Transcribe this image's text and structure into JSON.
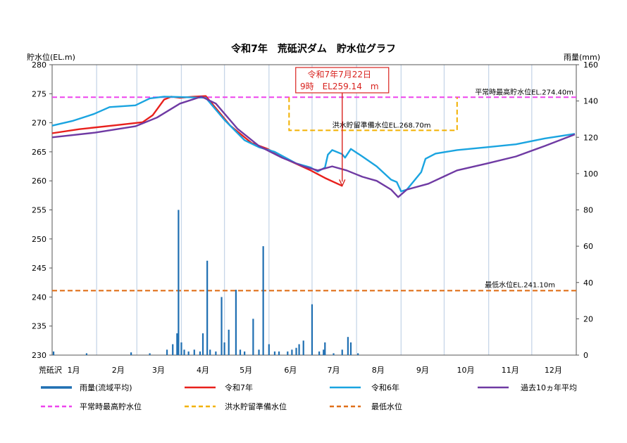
{
  "chart_data": {
    "type": "line",
    "title": "令和7年　荒砥沢ダム　貯水位グラフ",
    "left_axis": {
      "label": "貯水位(EL.m)",
      "range": [
        230,
        280
      ],
      "ticks": [
        "230",
        "235",
        "240",
        "245",
        "250",
        "255",
        "260",
        "265",
        "270",
        "275",
        "280"
      ]
    },
    "right_axis": {
      "label": "雨量(mm)",
      "range": [
        0,
        160
      ],
      "ticks": [
        "0",
        "20",
        "40",
        "60",
        "80",
        "100",
        "120",
        "140",
        "160"
      ]
    },
    "x_axis": {
      "label": "荒砥沢",
      "months": [
        "1月",
        "2月",
        "3月",
        "4月",
        "5月",
        "6月",
        "7月",
        "8月",
        "9月",
        "10月",
        "11月",
        "12月"
      ],
      "range_days": [
        0,
        365
      ]
    },
    "grid": "vertical monthly lines",
    "reference_lines": [
      {
        "name": "平常時最高貯水位",
        "label": "平常時最高貯水位EL.274.40m",
        "value": 274.4,
        "color": "#ee44ee"
      },
      {
        "name": "洪水貯留準備水位",
        "label": "洪水貯留準備水位EL.268.70m",
        "value": 268.7,
        "color": "#f2b100",
        "period": [
          "06-15",
          "10-10"
        ],
        "upper": 274.4
      },
      {
        "name": "最低水位",
        "label": "最低水位EL.241.10m",
        "value": 241.1,
        "color": "#e0701a"
      }
    ],
    "annotation": {
      "line1": "令和7年7月22日",
      "line2": "9時　EL259.14　m",
      "date": "07-22",
      "value": 259.14,
      "color": "#d8231f"
    },
    "series": [
      {
        "name": "令和7年",
        "color": "#e8201c",
        "points": [
          [
            "01-01",
            268.2
          ],
          [
            "01-20",
            268.9
          ],
          [
            "02-15",
            269.6
          ],
          [
            "03-05",
            270.1
          ],
          [
            "03-12",
            271.3
          ],
          [
            "03-20",
            274.0
          ],
          [
            "03-25",
            274.5
          ],
          [
            "03-31",
            274.3
          ],
          [
            "04-10",
            274.5
          ],
          [
            "04-18",
            274.6
          ],
          [
            "04-25",
            272.5
          ],
          [
            "05-05",
            269.5
          ],
          [
            "05-20",
            266.5
          ],
          [
            "05-31",
            265.5
          ],
          [
            "06-15",
            263.5
          ],
          [
            "06-30",
            261.8
          ],
          [
            "07-10",
            260.5
          ],
          [
            "07-22",
            259.14
          ]
        ]
      },
      {
        "name": "令和6年",
        "color": "#1aa4e0",
        "points": [
          [
            "01-01",
            269.5
          ],
          [
            "01-15",
            270.3
          ],
          [
            "01-30",
            271.5
          ],
          [
            "02-10",
            272.7
          ],
          [
            "02-28",
            273.0
          ],
          [
            "03-10",
            274.2
          ],
          [
            "03-20",
            274.5
          ],
          [
            "04-05",
            274.4
          ],
          [
            "04-18",
            274.3
          ],
          [
            "05-01",
            270.5
          ],
          [
            "05-15",
            267.0
          ],
          [
            "05-25",
            265.8
          ],
          [
            "06-05",
            265.0
          ],
          [
            "06-20",
            263.0
          ],
          [
            "06-30",
            262.3
          ],
          [
            "07-05",
            261.6
          ],
          [
            "07-10",
            262.3
          ],
          [
            "07-12",
            264.5
          ],
          [
            "07-15",
            265.3
          ],
          [
            "07-22",
            264.6
          ],
          [
            "07-24",
            264.0
          ],
          [
            "07-28",
            265.5
          ],
          [
            "08-05",
            264.2
          ],
          [
            "08-15",
            262.5
          ],
          [
            "08-25",
            260.2
          ],
          [
            "08-29",
            259.8
          ],
          [
            "09-01",
            258.2
          ],
          [
            "09-05",
            258.5
          ],
          [
            "09-10",
            260.0
          ],
          [
            "09-15",
            261.5
          ],
          [
            "09-18",
            263.8
          ],
          [
            "09-25",
            264.7
          ],
          [
            "10-10",
            265.3
          ],
          [
            "10-31",
            265.8
          ],
          [
            "11-20",
            266.3
          ],
          [
            "12-10",
            267.3
          ],
          [
            "12-31",
            268.1
          ]
        ]
      },
      {
        "name": "過去10ヵ年平均",
        "color": "#6f3aa3",
        "points": [
          [
            "01-01",
            267.5
          ],
          [
            "01-31",
            268.3
          ],
          [
            "02-28",
            269.4
          ],
          [
            "03-15",
            270.9
          ],
          [
            "03-31",
            273.3
          ],
          [
            "04-15",
            274.5
          ],
          [
            "04-25",
            273.3
          ],
          [
            "05-10",
            269.0
          ],
          [
            "05-25",
            266.0
          ],
          [
            "06-10",
            264.0
          ],
          [
            "06-25",
            262.5
          ],
          [
            "07-05",
            261.8
          ],
          [
            "07-15",
            262.5
          ],
          [
            "07-25",
            261.8
          ],
          [
            "08-05",
            260.7
          ],
          [
            "08-15",
            260.0
          ],
          [
            "08-25",
            258.5
          ],
          [
            "08-30",
            257.2
          ],
          [
            "09-05",
            258.5
          ],
          [
            "09-20",
            259.5
          ],
          [
            "10-10",
            261.8
          ],
          [
            "10-31",
            263.0
          ],
          [
            "11-20",
            264.2
          ],
          [
            "12-10",
            266.0
          ],
          [
            "12-31",
            268.0
          ]
        ]
      },
      {
        "name": "雨量(流域平均)",
        "color": "#1f6fb2",
        "axis": "right",
        "type": "bar",
        "bars": [
          [
            "01-02",
            2
          ],
          [
            "01-25",
            1
          ],
          [
            "02-25",
            1.5
          ],
          [
            "03-10",
            1
          ],
          [
            "03-22",
            3
          ],
          [
            "03-26",
            6
          ],
          [
            "03-29",
            12
          ],
          [
            "03-30",
            80
          ],
          [
            "04-01",
            7
          ],
          [
            "04-03",
            3
          ],
          [
            "04-06",
            2
          ],
          [
            "04-10",
            3
          ],
          [
            "04-14",
            2
          ],
          [
            "04-16",
            12
          ],
          [
            "04-19",
            52
          ],
          [
            "04-21",
            3
          ],
          [
            "04-25",
            2
          ],
          [
            "04-29",
            32
          ],
          [
            "05-01",
            7
          ],
          [
            "05-04",
            14
          ],
          [
            "05-09",
            36
          ],
          [
            "05-12",
            3
          ],
          [
            "05-15",
            2
          ],
          [
            "05-21",
            20
          ],
          [
            "05-25",
            3
          ],
          [
            "05-28",
            60
          ],
          [
            "06-01",
            6
          ],
          [
            "06-05",
            2
          ],
          [
            "06-08",
            2
          ],
          [
            "06-14",
            2
          ],
          [
            "06-17",
            3
          ],
          [
            "06-20",
            4
          ],
          [
            "06-22",
            6
          ],
          [
            "06-25",
            8
          ],
          [
            "07-01",
            28
          ],
          [
            "07-06",
            2
          ],
          [
            "07-09",
            3
          ],
          [
            "07-10",
            7
          ],
          [
            "07-16",
            1
          ],
          [
            "07-22",
            3
          ],
          [
            "07-26",
            10
          ],
          [
            "07-28",
            7
          ],
          [
            "08-02",
            1
          ]
        ]
      }
    ],
    "legend": [
      "雨量(流域平均)",
      "令和7年",
      "令和6年",
      "過去10ヵ年平均",
      "平常時最高貯水位",
      "洪水貯留準備水位",
      "最低水位"
    ]
  }
}
